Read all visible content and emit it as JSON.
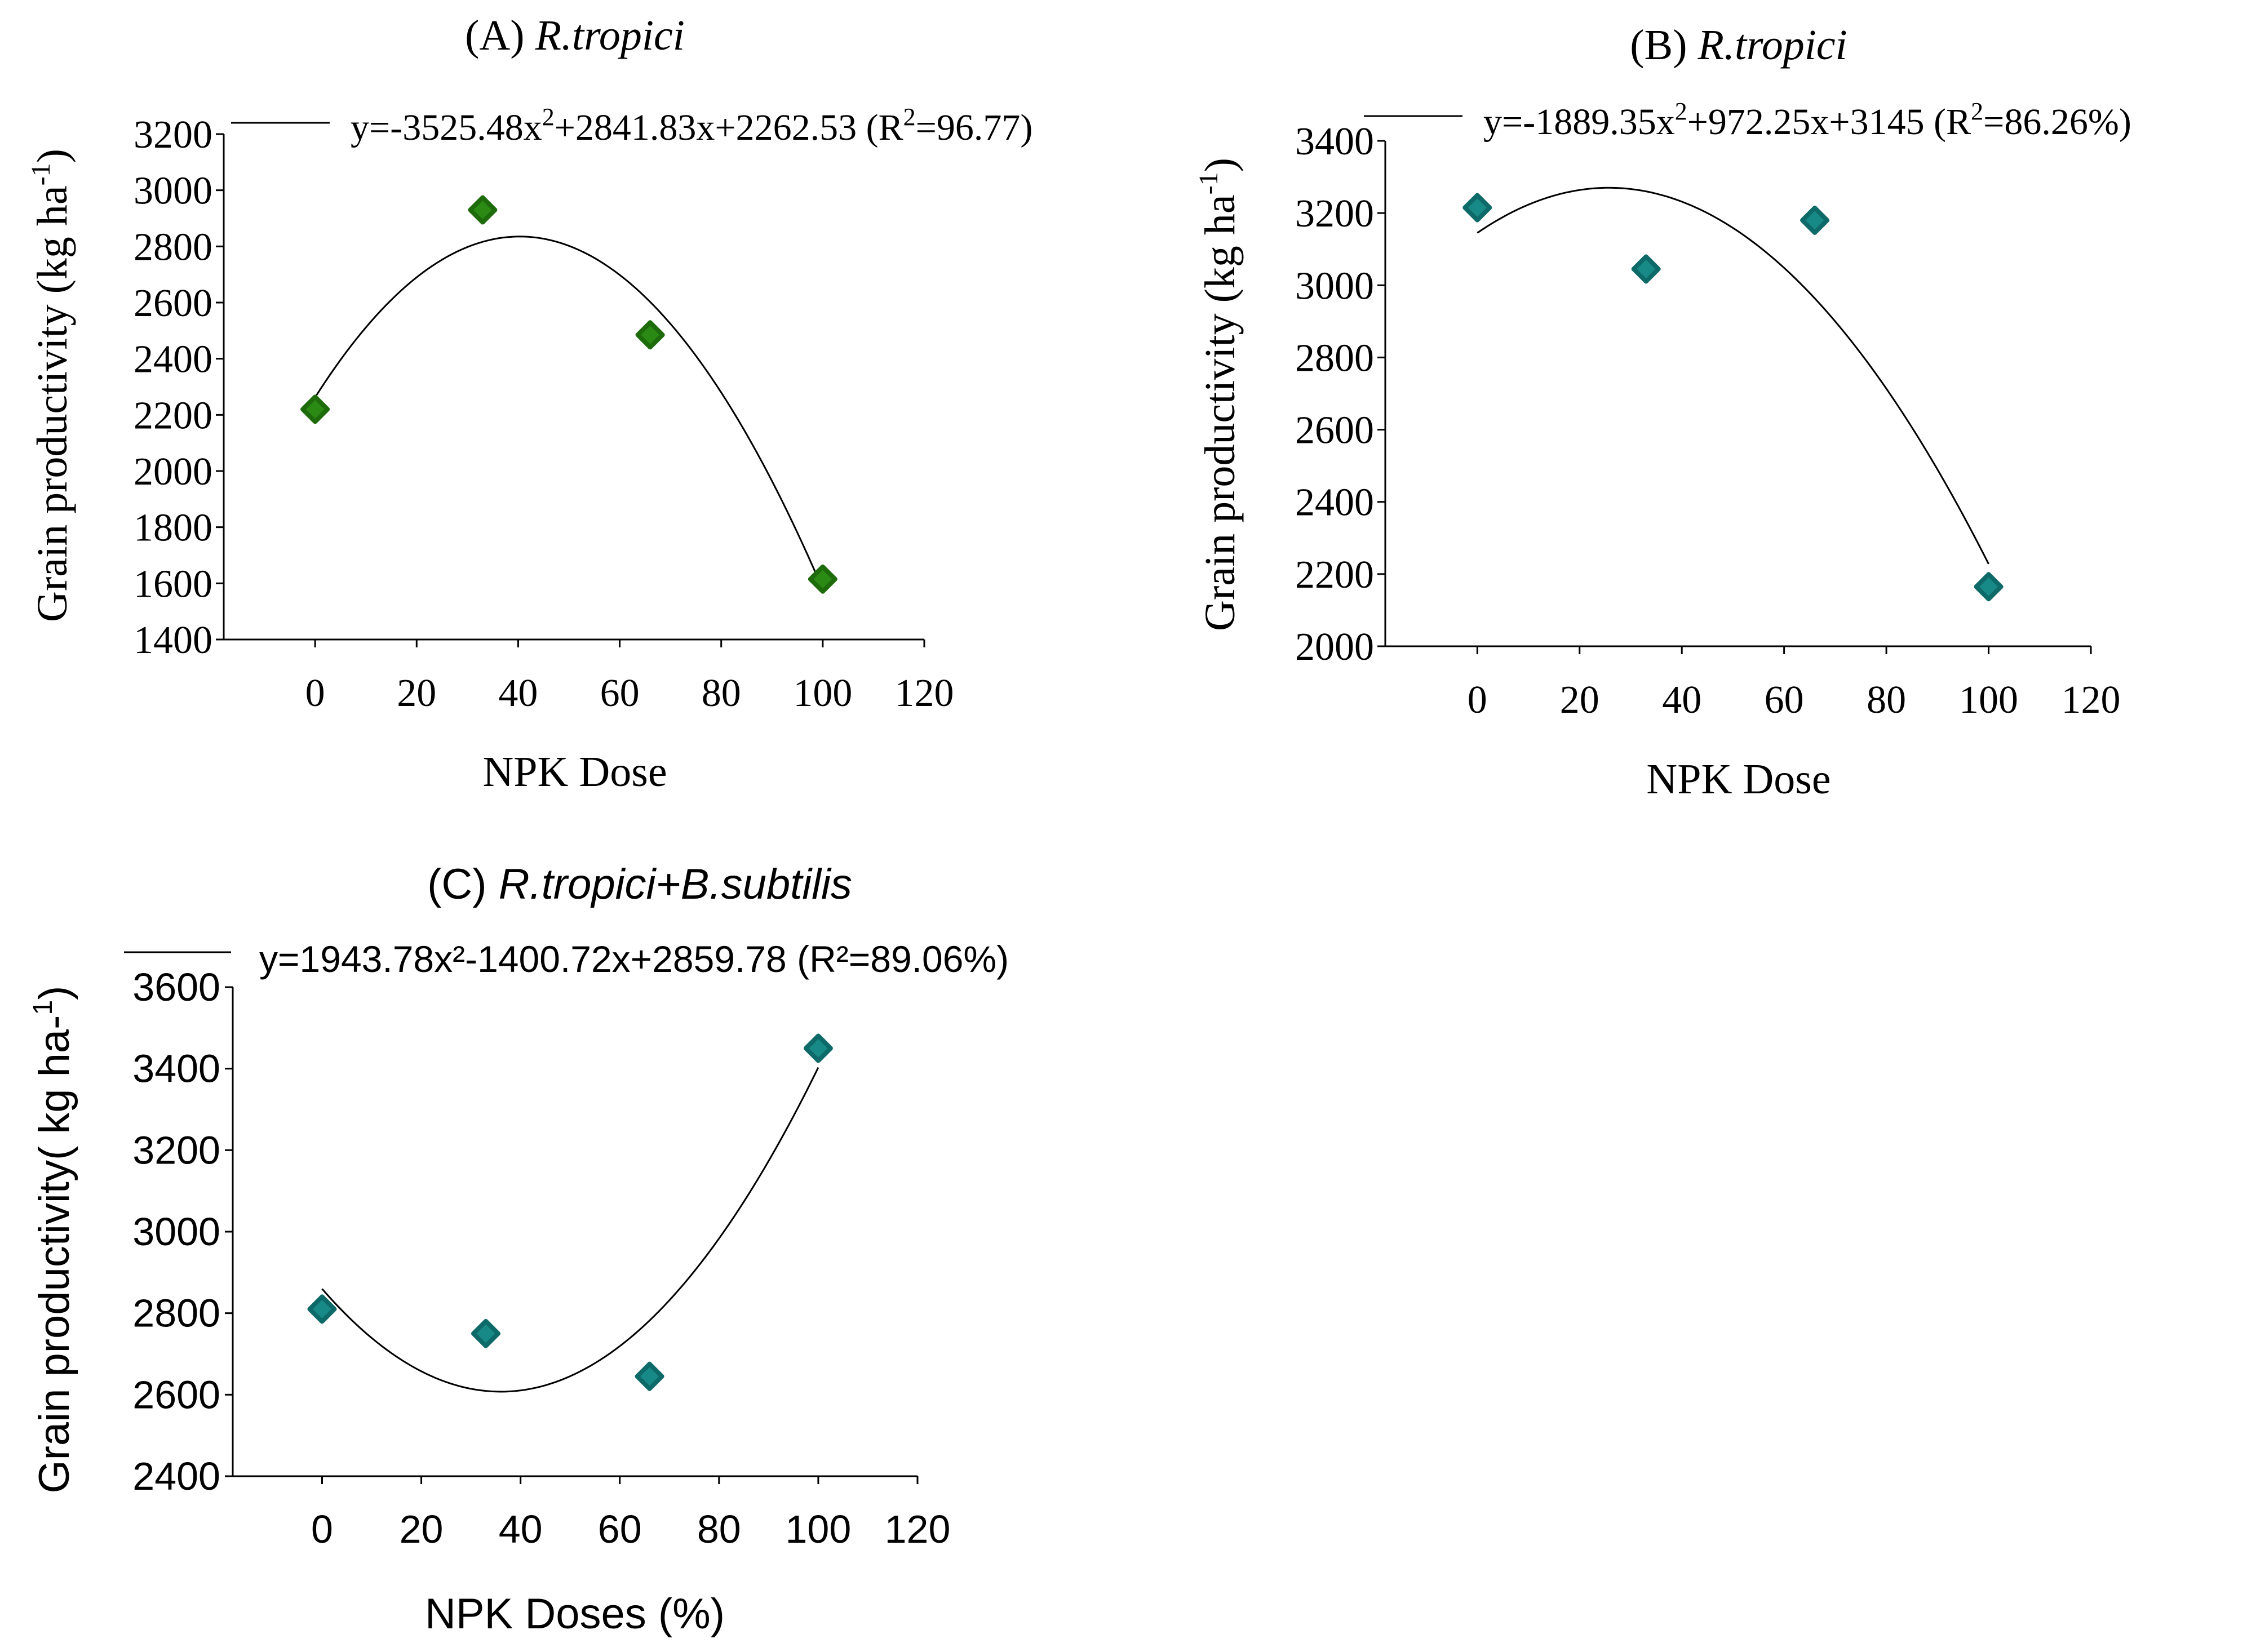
{
  "chart_data": [
    {
      "id": "A",
      "type": "scatter",
      "title_prefix": "(A) ",
      "title_species": "R.tropici",
      "xlabel": "NPK Dose",
      "ylabel_main": "Grain productivity (kg ha",
      "ylabel_sup": "-1",
      "ylabel_end": ")",
      "x_ticks": [
        "0",
        "20",
        "40",
        "60",
        "80",
        "100",
        "120"
      ],
      "y_ticks": [
        "1400",
        "1600",
        "1800",
        "2000",
        "2200",
        "2400",
        "2600",
        "2800",
        "3000",
        "3200"
      ],
      "xlim": [
        -18,
        120
      ],
      "ylim": [
        1400,
        3200
      ],
      "points": [
        {
          "x": 0,
          "y": 2220
        },
        {
          "x": 33,
          "y": 2930
        },
        {
          "x": 66,
          "y": 2485
        },
        {
          "x": 100,
          "y": 1615
        }
      ],
      "marker_color": "#2a8a14",
      "marker_stroke": "#1e6b0c",
      "fit": {
        "a": -3525.48,
        "b": 2841.83,
        "c": 2262.53
      },
      "equation": {
        "p1": "y=-3525.48x",
        "sup1": "2",
        "p2": "+2841.83x+2262.53 (R",
        "sup2": "2",
        "p3": "=96.77)"
      }
    },
    {
      "id": "B",
      "type": "scatter",
      "title_prefix": "(B) ",
      "title_species": "R.tropici",
      "xlabel": "NPK Dose",
      "ylabel_main": "Grain productivity (kg ha",
      "ylabel_sup": "-1",
      "ylabel_end": ")",
      "x_ticks": [
        "0",
        "20",
        "40",
        "60",
        "80",
        "100",
        "120"
      ],
      "y_ticks": [
        "2000",
        "2200",
        "2400",
        "2600",
        "2800",
        "3000",
        "3200",
        "3400"
      ],
      "xlim": [
        -18,
        120
      ],
      "ylim": [
        2000,
        3400
      ],
      "points": [
        {
          "x": 0,
          "y": 3215
        },
        {
          "x": 33,
          "y": 3045
        },
        {
          "x": 66,
          "y": 3180
        },
        {
          "x": 100,
          "y": 2165
        }
      ],
      "marker_color": "#178a88",
      "marker_stroke": "#0e6a68",
      "fit": {
        "a": -1889.35,
        "b": 972.25,
        "c": 3145
      },
      "equation": {
        "p1": "y=-1889.35x",
        "sup1": "2",
        "p2": "+972.25x+3145 (R",
        "sup2": "2",
        "p3": "=86.26%)"
      }
    },
    {
      "id": "C",
      "type": "scatter",
      "title_prefix": "(C) ",
      "title_species": "R.tropici+B.subtilis",
      "xlabel": "NPK Doses (%)",
      "ylabel_text": "Grain productivity( kg ha-",
      "ylabel_sup": "1",
      "ylabel_end": ")",
      "x_ticks": [
        "0",
        "20",
        "40",
        "60",
        "80",
        "100",
        "120"
      ],
      "y_ticks": [
        "2400",
        "2600",
        "2800",
        "3000",
        "3200",
        "3400",
        "3600"
      ],
      "xlim": [
        -18,
        120
      ],
      "ylim": [
        2400,
        3600
      ],
      "points": [
        {
          "x": 0,
          "y": 2810
        },
        {
          "x": 33,
          "y": 2750
        },
        {
          "x": 66,
          "y": 2645
        },
        {
          "x": 100,
          "y": 3450
        }
      ],
      "marker_color": "#178a88",
      "marker_stroke": "#0e6a68",
      "fit": {
        "a": 1943.78,
        "b": -1400.72,
        "c": 2859.78
      },
      "equation_text": "y=1943.78x²-1400.72x+2859.78 (R²=89.06%)"
    }
  ]
}
